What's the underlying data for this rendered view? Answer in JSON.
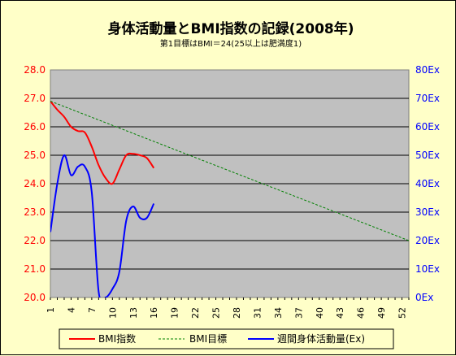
{
  "chart_data": {
    "type": "line",
    "title": "身体活動量とBMI指数の記録(2008年)",
    "subtitle": "第1目標はBMI＝24(25以上は肥満度1)",
    "x": [
      1,
      2,
      3,
      4,
      5,
      6,
      7,
      8,
      9,
      10,
      11,
      12,
      13,
      14,
      15,
      16
    ],
    "xlim": [
      1,
      53
    ],
    "x_tick_labels": [
      "1",
      "4",
      "7",
      "10",
      "13",
      "16",
      "19",
      "22",
      "25",
      "28",
      "31",
      "34",
      "37",
      "40",
      "43",
      "46",
      "49",
      "52"
    ],
    "y_left": {
      "ylim": [
        20.0,
        28.0
      ],
      "tick_labels": [
        "20.0",
        "21.0",
        "22.0",
        "23.0",
        "24.0",
        "25.0",
        "26.0",
        "27.0",
        "28.0"
      ]
    },
    "y_right": {
      "ylim": [
        0,
        80
      ],
      "tick_labels": [
        "0Ex",
        "10Ex",
        "20Ex",
        "30Ex",
        "40Ex",
        "50Ex",
        "60Ex",
        "70Ex",
        "80Ex"
      ]
    },
    "grid": true,
    "legend_position": "bottom",
    "series": [
      {
        "name": "BMI指数",
        "axis": "left",
        "color": "#ff0000",
        "style": "solid",
        "smooth": true,
        "x": [
          1,
          2,
          3,
          4,
          5,
          6,
          7,
          8,
          9,
          10,
          11,
          12,
          13,
          14,
          15,
          16
        ],
        "values": [
          26.9,
          26.6,
          26.35,
          26.0,
          25.85,
          25.8,
          25.3,
          24.65,
          24.2,
          24.0,
          24.5,
          25.0,
          25.05,
          25.0,
          24.9,
          24.55
        ]
      },
      {
        "name": "BMI目標",
        "axis": "left",
        "color": "#008000",
        "style": "dashed",
        "smooth": false,
        "x": [
          1,
          53
        ],
        "values": [
          26.9,
          22.0
        ]
      },
      {
        "name": "週間身体活動量(Ex)",
        "axis": "right",
        "color": "#0000ff",
        "style": "solid",
        "smooth": true,
        "x": [
          1,
          2,
          3,
          4,
          5,
          6,
          7,
          8,
          9,
          10,
          11,
          12,
          13,
          14,
          15,
          16
        ],
        "values": [
          23,
          40,
          50,
          43,
          46,
          46,
          37,
          2,
          0,
          3,
          9,
          27,
          32,
          28,
          28,
          33
        ]
      }
    ]
  }
}
